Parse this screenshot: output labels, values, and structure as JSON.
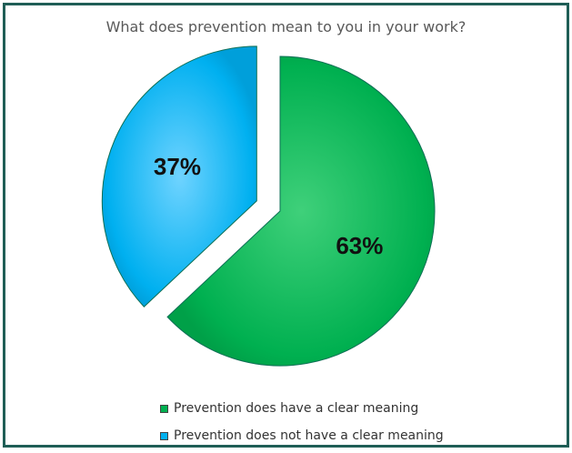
{
  "chart_data": {
    "type": "pie",
    "title": "What does prevention mean to you in your work?",
    "slices": [
      {
        "name": "Prevention does have a clear meaning",
        "value": 63,
        "label": "63%",
        "color": "#00b050"
      },
      {
        "name": "Prevention does not have a clear meaning",
        "value": 37,
        "label": "37%",
        "color": "#00b0f0"
      }
    ],
    "exploded_slice": "Prevention does not have a clear meaning",
    "legend_position": "bottom"
  }
}
